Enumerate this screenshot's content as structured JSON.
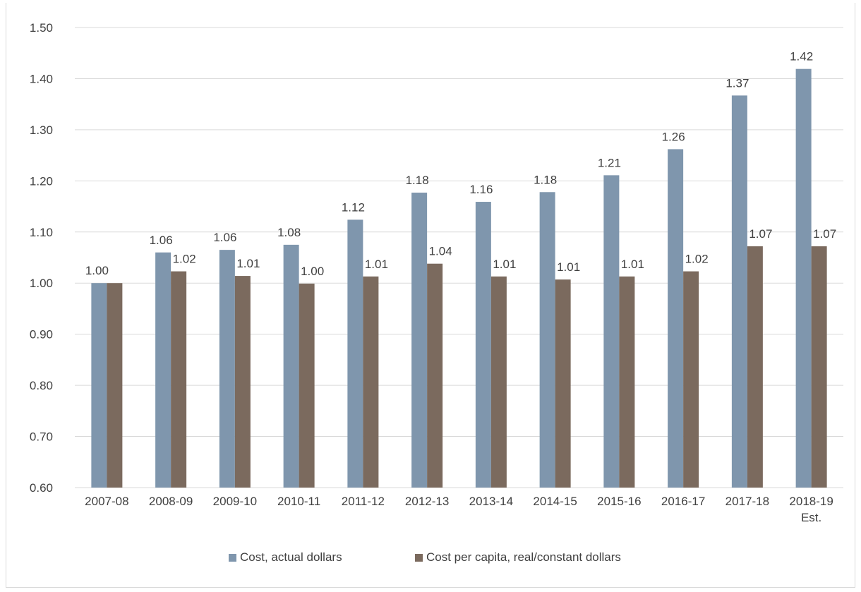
{
  "chart_data": {
    "type": "bar",
    "categories": [
      "2007-08",
      "2008-09",
      "2009-10",
      "2010-11",
      "2011-12",
      "2012-13",
      "2013-14",
      "2014-15",
      "2015-16",
      "2016-17",
      "2017-18",
      "2018-19 Est."
    ],
    "category_lines": [
      [
        "2007-08"
      ],
      [
        "2008-09"
      ],
      [
        "2009-10"
      ],
      [
        "2010-11"
      ],
      [
        "2011-12"
      ],
      [
        "2012-13"
      ],
      [
        "2013-14"
      ],
      [
        "2014-15"
      ],
      [
        "2015-16"
      ],
      [
        "2016-17"
      ],
      [
        "2017-18"
      ],
      [
        "2018-19",
        "Est."
      ]
    ],
    "series": [
      {
        "name": "Cost, actual dollars",
        "color": "#7f96ad",
        "values": [
          1.0,
          1.06,
          1.065,
          1.075,
          1.124,
          1.177,
          1.159,
          1.178,
          1.211,
          1.262,
          1.367,
          1.419
        ],
        "labels": [
          "1.00",
          "1.06",
          "1.06",
          "1.08",
          "1.12",
          "1.18",
          "1.16",
          "1.18",
          "1.21",
          "1.26",
          "1.37",
          "1.42"
        ]
      },
      {
        "name": "Cost per capita, real/constant dollars",
        "color": "#7b6a5e",
        "values": [
          1.0,
          1.023,
          1.014,
          0.999,
          1.013,
          1.038,
          1.013,
          1.007,
          1.013,
          1.023,
          1.072,
          1.072
        ],
        "labels": [
          "",
          "1.02",
          "1.01",
          "1.00",
          "1.01",
          "1.04",
          "1.01",
          "1.01",
          "1.01",
          "1.02",
          "1.07",
          "1.07"
        ]
      }
    ],
    "yticks": [
      "0.60",
      "0.70",
      "0.80",
      "0.90",
      "1.00",
      "1.10",
      "1.20",
      "1.30",
      "1.40",
      "1.50"
    ],
    "ylim": [
      0.6,
      1.5
    ],
    "grid": true,
    "legend": "bottom"
  }
}
